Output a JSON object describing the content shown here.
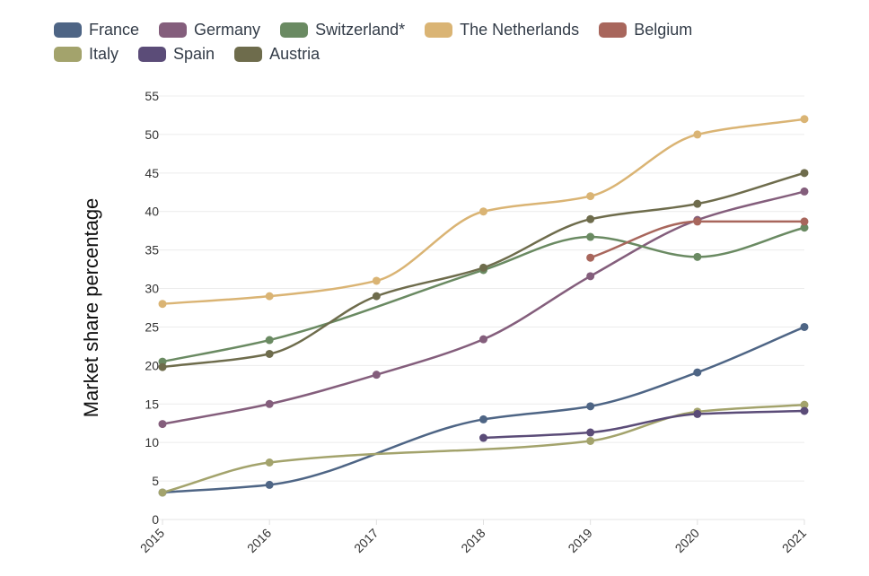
{
  "chart_data": {
    "type": "line",
    "title": "",
    "xlabel": "",
    "ylabel": "Market share percentage",
    "x": [
      "2015",
      "2016",
      "2017",
      "2018",
      "2019",
      "2020",
      "2021"
    ],
    "yticks": [
      "0",
      "5",
      "10",
      "15",
      "20",
      "25",
      "30",
      "35",
      "40",
      "45",
      "50",
      "55"
    ],
    "ylim": [
      0,
      55
    ],
    "grid": true,
    "legend_position": "top-left",
    "series": [
      {
        "name": "France",
        "color": "#4e6585",
        "values": [
          3.5,
          4.5,
          null,
          13.0,
          14.7,
          19.1,
          25.0
        ]
      },
      {
        "name": "Germany",
        "color": "#845e7c",
        "values": [
          12.4,
          15.0,
          18.8,
          23.4,
          31.6,
          38.9,
          42.6
        ]
      },
      {
        "name": "Switzerland*",
        "color": "#6a8a62",
        "values": [
          20.5,
          23.3,
          null,
          32.4,
          36.7,
          34.1,
          37.9
        ]
      },
      {
        "name": "The Netherlands",
        "color": "#dab474",
        "values": [
          28.0,
          29.0,
          31.0,
          40.0,
          42.0,
          50.0,
          52.0
        ]
      },
      {
        "name": "Belgium",
        "color": "#a8665c",
        "values": [
          null,
          null,
          null,
          null,
          34.0,
          38.7,
          38.7
        ]
      },
      {
        "name": "Italy",
        "color": "#a3a36c",
        "values": [
          3.5,
          7.4,
          null,
          null,
          10.2,
          14.0,
          14.9
        ]
      },
      {
        "name": "Spain",
        "color": "#5b4c78",
        "values": [
          null,
          null,
          null,
          10.6,
          11.3,
          13.7,
          14.1
        ]
      },
      {
        "name": "Austria",
        "color": "#6e6c4c",
        "values": [
          19.8,
          21.5,
          29.0,
          32.7,
          39.0,
          41.0,
          45.0
        ]
      }
    ]
  }
}
